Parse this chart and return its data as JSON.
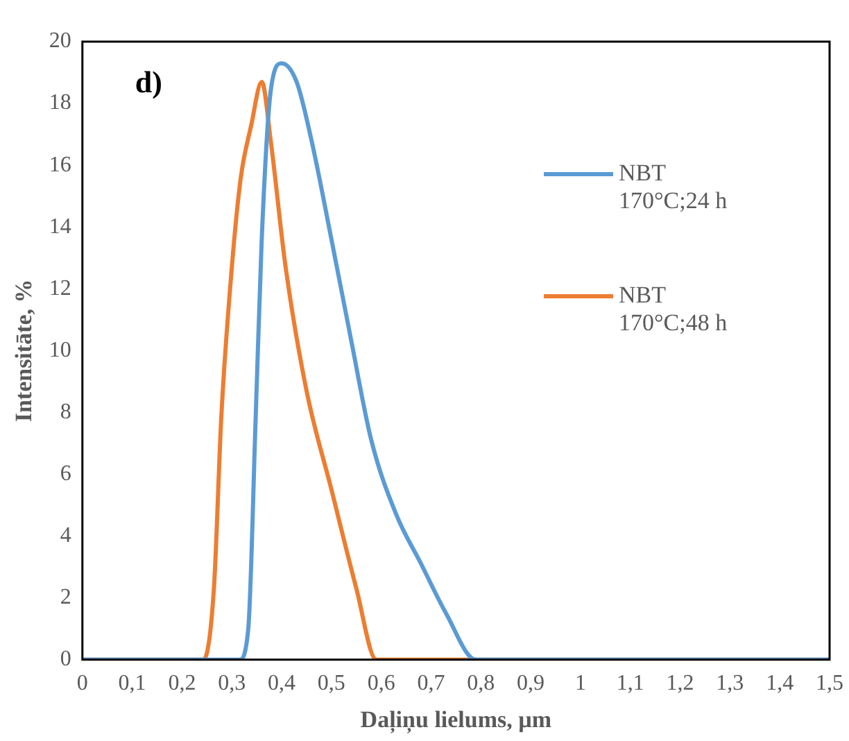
{
  "chart_data": {
    "type": "line",
    "xlabel": "Daļiņu lielums, µm",
    "ylabel": "Intensitāte, %",
    "annotations": [
      "d)"
    ],
    "xlim": [
      0,
      1.5
    ],
    "xticks": [
      0,
      {
        "value": 0.1,
        "label": "0,1"
      },
      {
        "value": 0.2,
        "label": "0,2"
      },
      {
        "value": 0.3,
        "label": "0,3"
      },
      {
        "value": 0.4,
        "label": "0,4"
      },
      {
        "value": 0.5,
        "label": "0,5"
      },
      {
        "value": 0.6,
        "label": "0,6"
      },
      {
        "value": 0.7,
        "label": "0,7"
      },
      {
        "value": 0.8,
        "label": "0,8"
      },
      {
        "value": 0.9,
        "label": "0,9"
      },
      1,
      {
        "value": 1.1,
        "label": "1,1"
      },
      {
        "value": 1.2,
        "label": "1,2"
      },
      {
        "value": 1.3,
        "label": "1,3"
      },
      {
        "value": 1.4,
        "label": "1,4"
      },
      {
        "value": 1.5,
        "label": "1,5"
      }
    ],
    "ylim": [
      0,
      20
    ],
    "yticks": [
      0,
      2,
      4,
      6,
      8,
      10,
      12,
      14,
      16,
      18,
      20
    ],
    "grid": false,
    "legend": "right",
    "marker": "none",
    "line_style": "solid",
    "series": [
      {
        "name": "NBT 170°C;24 h",
        "color": "#5b9bd5",
        "x": [
          0,
          0.315,
          0.333,
          0.348,
          0.36,
          0.378,
          0.4,
          0.43,
          0.46,
          0.5,
          0.54,
          0.58,
          0.63,
          0.68,
          0.73,
          0.79,
          1.5
        ],
        "values": [
          0,
          0,
          1,
          7.9,
          13.6,
          18.4,
          19.3,
          18.7,
          16.8,
          13.6,
          10.3,
          7.1,
          4.7,
          3.1,
          1.5,
          0,
          0
        ]
      },
      {
        "name": "NBT 170°C;48 h",
        "color": "#ed7d31",
        "x": [
          0,
          0.243,
          0.264,
          0.279,
          0.3,
          0.318,
          0.339,
          0.36,
          0.378,
          0.408,
          0.45,
          0.5,
          0.55,
          0.59,
          1.5
        ],
        "values": [
          0,
          0,
          2.3,
          7.9,
          12.7,
          15.6,
          17.3,
          18.7,
          16.8,
          12.7,
          8.7,
          5.5,
          2.3,
          0,
          0
        ]
      }
    ]
  }
}
